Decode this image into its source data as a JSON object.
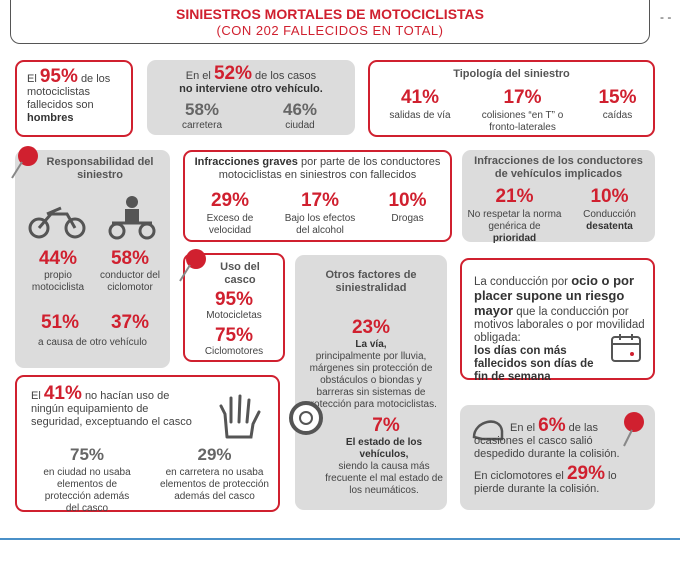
{
  "header": {
    "title": "SINIESTROS MORTALES DE MOTOCICLISTAS",
    "subtitle": "(CON 202 FALLECIDOS EN TOTAL)"
  },
  "gender": {
    "pre": "El",
    "value": "95%",
    "mid": "de los motociclistas fallecidos son",
    "bold": "hombres"
  },
  "other_vehicle": {
    "pre": "En el",
    "value": "52%",
    "mid": "de los casos",
    "bold": "no interviene otro vehículo.",
    "stats": [
      {
        "value": "58%",
        "label": "carretera"
      },
      {
        "value": "46%",
        "label": "ciudad"
      }
    ]
  },
  "typology": {
    "title": "Tipología del siniestro",
    "stats": [
      {
        "value": "41%",
        "label": "salidas de vía"
      },
      {
        "value": "17%",
        "label": "colisiones “en T” o fronto-laterales"
      },
      {
        "value": "15%",
        "label": "caídas"
      }
    ]
  },
  "responsibility": {
    "title": "Responsabilidad del siniestro",
    "stats": [
      {
        "value": "44%",
        "label": "propio motociclista"
      },
      {
        "value": "58%",
        "label": "conductor del ciclomotor"
      }
    ],
    "other": {
      "values": [
        "51%",
        "37%"
      ],
      "label": "a causa de otro vehículo"
    }
  },
  "serious": {
    "bold": "Infracciones graves",
    "rest": "por parte de los conductores motociclistas en siniestros con fallecidos",
    "stats": [
      {
        "value": "29%",
        "label": "Exceso de velocidad"
      },
      {
        "value": "17%",
        "label": "Bajo los efectos del alcohol"
      },
      {
        "value": "10%",
        "label": "Drogas"
      }
    ]
  },
  "involved": {
    "title": "Infracciones de los conductores de vehículos implicados",
    "stats": [
      {
        "value": "21%",
        "label": "No respetar la norma genérica de",
        "bold": "prioridad"
      },
      {
        "value": "10%",
        "label": "Conducción",
        "bold": "desatenta"
      }
    ]
  },
  "helmet_use": {
    "title": "Uso del casco",
    "stats": [
      {
        "value": "95%",
        "label": "Motocicletas"
      },
      {
        "value": "75%",
        "label": "Ciclomotores"
      }
    ]
  },
  "factors": {
    "title": "Otros factores de siniestralidad",
    "items": [
      {
        "value": "23%",
        "bold": "La vía,",
        "text": "principalmente por lluvia, márgenes sin protección de obstáculos o biondas y barreras sin sistemas de protección para motociclistas."
      },
      {
        "value": "7%",
        "bold": "El estado de los vehículos,",
        "text": "siendo la causa más frecuente el mal estado de los neumáticos."
      }
    ]
  },
  "leisure": {
    "pre": "La conducción por",
    "bold": "ocio o por placer supone un riesgo mayor",
    "mid": "que la conducción por motivos laborales o por movilidad obligada:",
    "bold2": "los días con más fallecidos son días de fin de semana"
  },
  "equipment": {
    "pre": "El",
    "value": "41%",
    "rest": "no hacían uso de ningún equipamiento de seguridad, exceptuando el casco",
    "stats": [
      {
        "value": "75%",
        "label": "en ciudad no usaba elementos de protección además del casco"
      },
      {
        "value": "29%",
        "label": "en carretera no usaba elementos de protección además del casco"
      }
    ]
  },
  "helmet_loss": {
    "pre": "En el",
    "value": "6%",
    "rest": "de las ocasiones el casco salió despedido durante la colisión.",
    "pre2": "En ciclomotores el",
    "value2": "29%",
    "rest2": "lo pierde durante la colisión."
  }
}
